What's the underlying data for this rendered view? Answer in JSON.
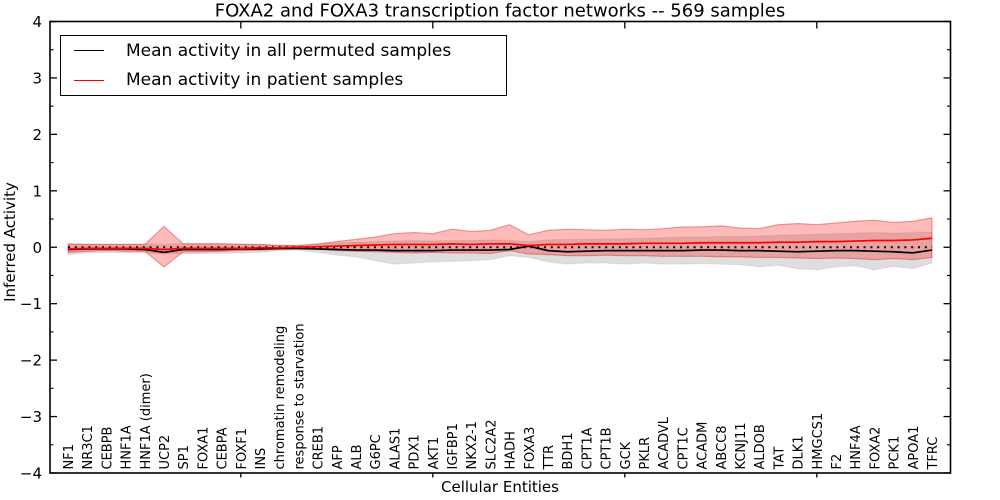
{
  "chart_data": {
    "type": "line",
    "title": "FOXA2 and FOXA3 transcription factor networks -- 569 samples",
    "xlabel": "Cellular Entities",
    "ylabel": "Inferred Activity",
    "ylim": [
      -4,
      4
    ],
    "yticks_major": [
      -4,
      -3,
      -2,
      -1,
      0,
      1,
      2,
      3,
      4
    ],
    "yticks_minor_step": 0.5,
    "xticks_major_positions": [
      10,
      20,
      30,
      40
    ],
    "grid": false,
    "legend_position": "upper left",
    "legend": [
      {
        "label": "Mean activity in all permuted samples",
        "color": "#000000"
      },
      {
        "label": "Mean activity in patient samples",
        "color": "#ff0000"
      }
    ],
    "zero_line": {
      "y": 0,
      "style": "dotted",
      "color": "#000000"
    },
    "categories": [
      "NF1",
      "NR3C1",
      "CEBPB",
      "HNF1A",
      "HNF1A (dimer)",
      "UCP2",
      "SP1",
      "FOXA1",
      "CEBPA",
      "FOXF1",
      "INS",
      "chromatin remodeling",
      "response to starvation",
      "CREB1",
      "AFP",
      "ALB",
      "G6PC",
      "ALAS1",
      "PDX1",
      "AKT1",
      "IGFBP1",
      "NKX2-1",
      "SLC2A2",
      "HADH",
      "FOXA3",
      "TTR",
      "BDH1",
      "CPT1A",
      "CPT1B",
      "GCK",
      "PKLR",
      "ACADVL",
      "CPT1C",
      "ACADM",
      "ABCC8",
      "KCNJ11",
      "ALDOB",
      "TAT",
      "DLK1",
      "HMGCS1",
      "F2",
      "HNF4A",
      "FOXA2",
      "PCK1",
      "APOA1",
      "TFRC"
    ],
    "series": [
      {
        "name": "Mean activity in all permuted samples",
        "color": "#000000",
        "values": [
          -0.04,
          -0.03,
          -0.03,
          -0.03,
          -0.04,
          -0.09,
          -0.04,
          -0.04,
          -0.04,
          -0.03,
          -0.03,
          -0.02,
          -0.02,
          -0.03,
          -0.04,
          -0.05,
          -0.05,
          -0.06,
          -0.06,
          -0.06,
          -0.05,
          -0.05,
          -0.05,
          -0.04,
          0.02,
          -0.06,
          -0.08,
          -0.07,
          -0.06,
          -0.06,
          -0.06,
          -0.06,
          -0.06,
          -0.05,
          -0.05,
          -0.06,
          -0.06,
          -0.07,
          -0.08,
          -0.07,
          -0.06,
          -0.06,
          -0.07,
          -0.08,
          -0.1,
          -0.05
        ]
      },
      {
        "name": "Mean activity in patient samples",
        "color": "#ff0000",
        "values": [
          -0.03,
          -0.02,
          -0.02,
          -0.02,
          -0.02,
          -0.04,
          -0.02,
          -0.02,
          -0.02,
          -0.02,
          -0.01,
          -0.01,
          0.0,
          0.01,
          0.02,
          0.03,
          0.04,
          0.05,
          0.05,
          0.05,
          0.06,
          0.05,
          0.06,
          0.06,
          0.03,
          0.05,
          0.05,
          0.06,
          0.06,
          0.06,
          0.07,
          0.07,
          0.07,
          0.08,
          0.08,
          0.08,
          0.08,
          0.09,
          0.09,
          0.1,
          0.1,
          0.11,
          0.12,
          0.12,
          0.13,
          0.16
        ]
      }
    ],
    "bands": [
      {
        "name": "permuted-samples-range",
        "fill": "rgba(0,0,0,0.13)",
        "edge": "rgba(0,0,0,0.07)",
        "lo": [
          -0.13,
          -0.1,
          -0.09,
          -0.1,
          -0.1,
          -0.12,
          -0.12,
          -0.11,
          -0.11,
          -0.1,
          -0.09,
          -0.06,
          -0.05,
          -0.09,
          -0.14,
          -0.17,
          -0.24,
          -0.3,
          -0.28,
          -0.26,
          -0.25,
          -0.24,
          -0.22,
          -0.15,
          -0.18,
          -0.26,
          -0.3,
          -0.28,
          -0.28,
          -0.3,
          -0.28,
          -0.3,
          -0.3,
          -0.29,
          -0.3,
          -0.31,
          -0.35,
          -0.32,
          -0.38,
          -0.4,
          -0.35,
          -0.33,
          -0.4,
          -0.34,
          -0.38,
          -0.28
        ],
        "hi": [
          0.07,
          0.06,
          0.06,
          0.06,
          0.06,
          0.05,
          0.07,
          0.07,
          0.07,
          0.06,
          0.05,
          0.04,
          0.04,
          0.06,
          0.08,
          0.09,
          0.1,
          0.11,
          0.12,
          0.11,
          0.12,
          0.12,
          0.13,
          0.12,
          0.1,
          0.13,
          0.14,
          0.14,
          0.15,
          0.15,
          0.16,
          0.17,
          0.18,
          0.18,
          0.19,
          0.19,
          0.2,
          0.21,
          0.22,
          0.23,
          0.24,
          0.25,
          0.26,
          0.25,
          0.26,
          0.27
        ]
      },
      {
        "name": "patient-samples-range",
        "fill": "rgba(255,0,0,0.27)",
        "edge": "rgba(215,40,40,0.45)",
        "lo": [
          -0.09,
          -0.07,
          -0.06,
          -0.07,
          -0.07,
          -0.35,
          -0.08,
          -0.08,
          -0.07,
          -0.06,
          -0.05,
          -0.04,
          -0.03,
          -0.04,
          -0.06,
          -0.07,
          -0.08,
          -0.09,
          -0.1,
          -0.09,
          -0.1,
          -0.1,
          -0.11,
          -0.06,
          -0.12,
          -0.13,
          -0.15,
          -0.15,
          -0.14,
          -0.15,
          -0.15,
          -0.16,
          -0.16,
          -0.16,
          -0.17,
          -0.17,
          -0.18,
          -0.18,
          -0.19,
          -0.2,
          -0.19,
          -0.2,
          -0.22,
          -0.2,
          -0.22,
          -0.18
        ],
        "hi": [
          0.05,
          0.05,
          0.05,
          0.05,
          0.05,
          0.37,
          0.06,
          0.06,
          0.06,
          0.05,
          0.05,
          0.03,
          0.03,
          0.06,
          0.1,
          0.14,
          0.18,
          0.24,
          0.26,
          0.24,
          0.32,
          0.28,
          0.3,
          0.4,
          0.22,
          0.3,
          0.32,
          0.31,
          0.3,
          0.32,
          0.31,
          0.33,
          0.36,
          0.36,
          0.38,
          0.34,
          0.33,
          0.4,
          0.42,
          0.4,
          0.43,
          0.46,
          0.48,
          0.44,
          0.46,
          0.52
        ]
      }
    ]
  }
}
